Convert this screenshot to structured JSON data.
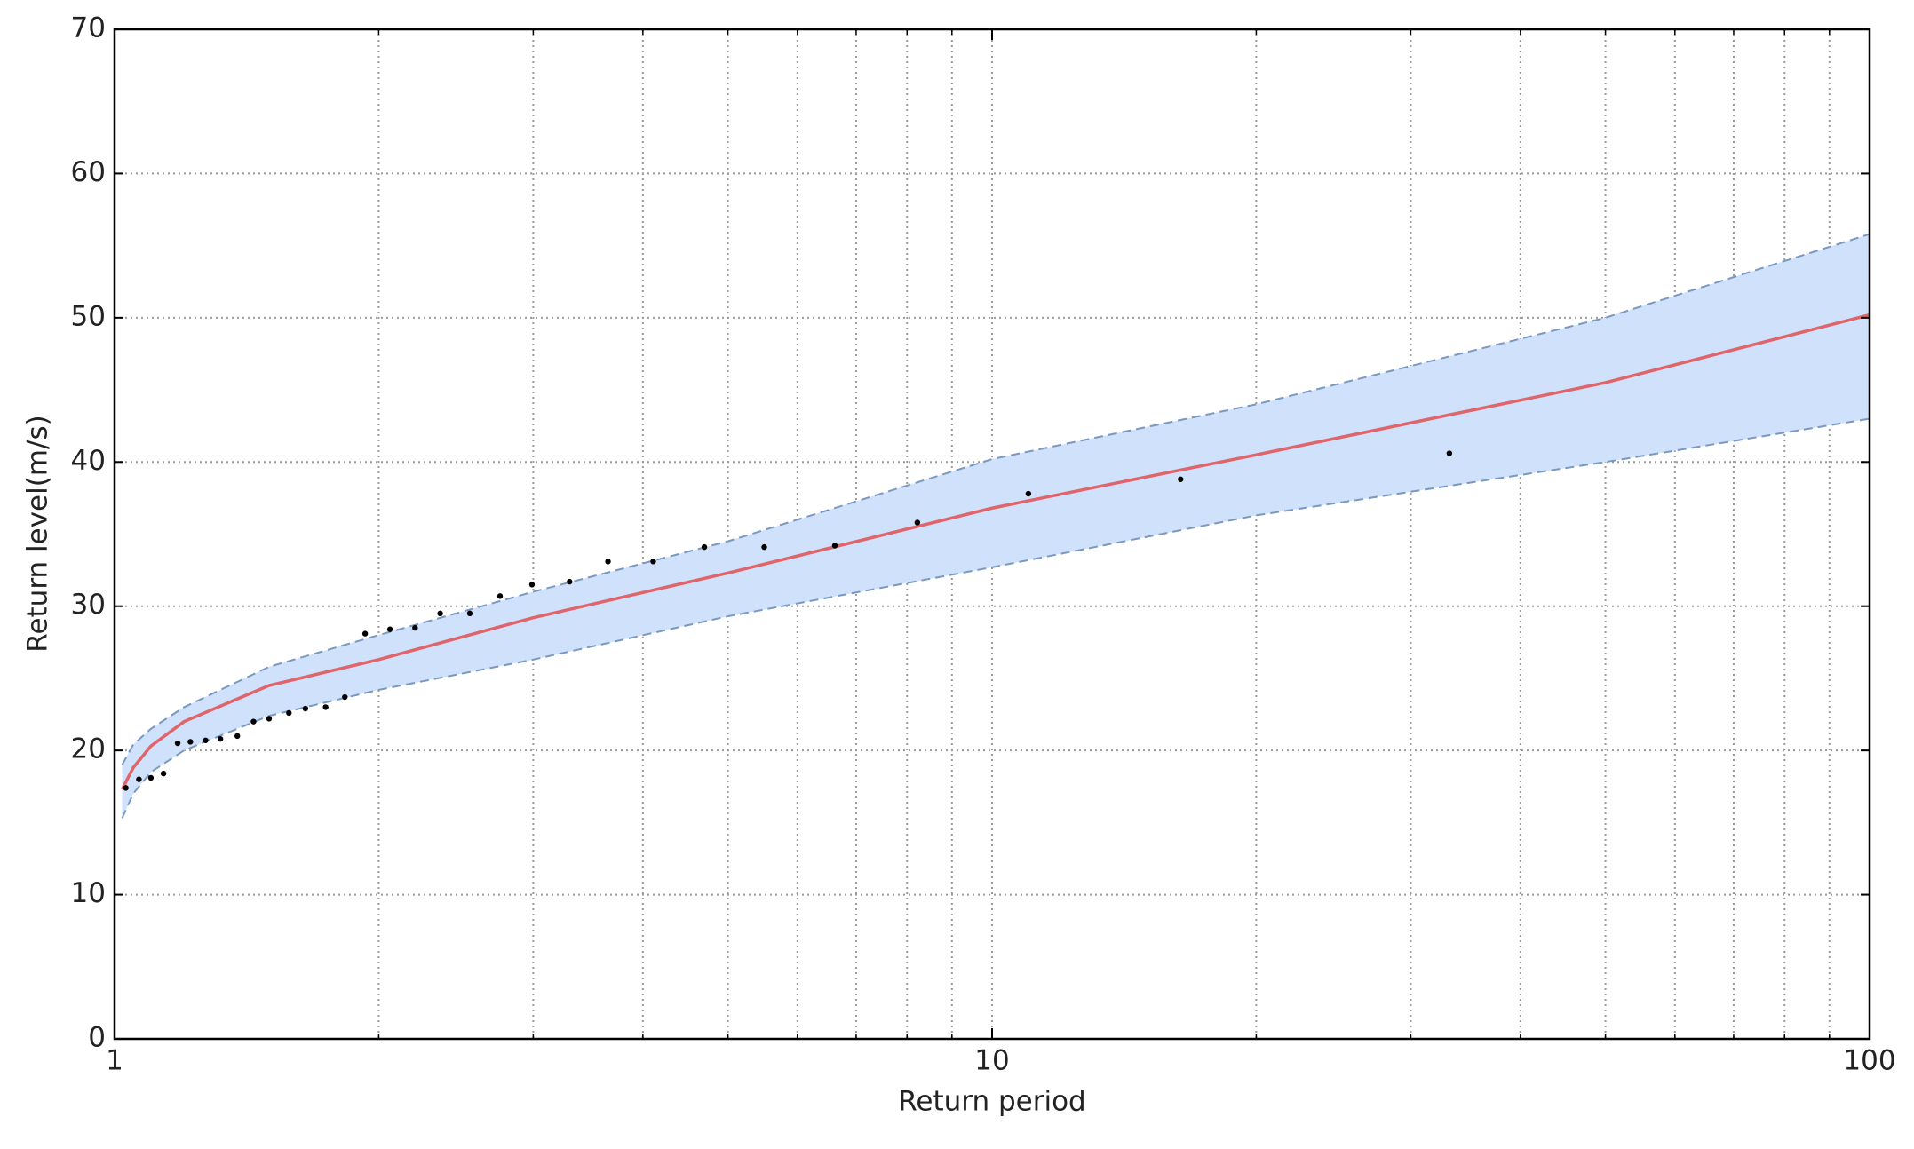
{
  "chart_data": {
    "type": "line",
    "xlabel": "Return period",
    "ylabel": "Return level(m/s)",
    "xscale": "log",
    "xlim": [
      1,
      100
    ],
    "xticks": [
      1,
      10,
      100
    ],
    "xminor": [
      2,
      3,
      4,
      5,
      6,
      7,
      8,
      9,
      20,
      30,
      40,
      50,
      60,
      70,
      80,
      90
    ],
    "ylim": [
      0,
      70
    ],
    "yticks": [
      0,
      10,
      20,
      30,
      40,
      50,
      60,
      70
    ],
    "grid": true,
    "fit": {
      "color": "#e0656b",
      "x": [
        1.02,
        1.05,
        1.1,
        1.2,
        1.5,
        2,
        3,
        5,
        10,
        20,
        50,
        100
      ],
      "values": [
        17.3,
        18.8,
        20.3,
        22,
        24.5,
        26.3,
        29.2,
        32.3,
        36.8,
        40.5,
        45.5,
        50.2
      ]
    },
    "band": {
      "color": "#cfe1fb",
      "edge_color": "#7a98c0",
      "x": [
        1.02,
        1.05,
        1.1,
        1.2,
        1.5,
        2,
        3,
        5,
        10,
        20,
        50,
        100
      ],
      "upper": [
        19,
        20.4,
        21.5,
        23,
        25.8,
        28,
        31,
        34.5,
        40.2,
        44,
        50,
        55.8
      ],
      "lower": [
        15.3,
        17,
        18.5,
        20,
        22.4,
        24.2,
        26.3,
        29.3,
        32.7,
        36.3,
        40,
        43
      ]
    },
    "points": {
      "color": "#000000",
      "x": [
        1.03,
        1.066,
        1.1,
        1.137,
        1.18,
        1.22,
        1.27,
        1.32,
        1.38,
        1.44,
        1.5,
        1.58,
        1.65,
        1.74,
        1.83,
        1.93,
        2.06,
        2.2,
        2.35,
        2.54,
        2.75,
        2.99,
        3.3,
        3.65,
        4.11,
        4.7,
        5.5,
        6.62,
        8.22,
        11,
        16.4,
        33.2
      ],
      "values": [
        17.4,
        18,
        18.1,
        18.4,
        20.5,
        20.6,
        20.7,
        20.8,
        21,
        22,
        22.2,
        22.6,
        22.9,
        23,
        23.7,
        28.1,
        28.4,
        28.5,
        29.5,
        29.5,
        30.7,
        31.5,
        31.7,
        33.1,
        33.1,
        34.1,
        34.1,
        34.2,
        35.8,
        37.8,
        38.8,
        40.6
      ]
    }
  }
}
